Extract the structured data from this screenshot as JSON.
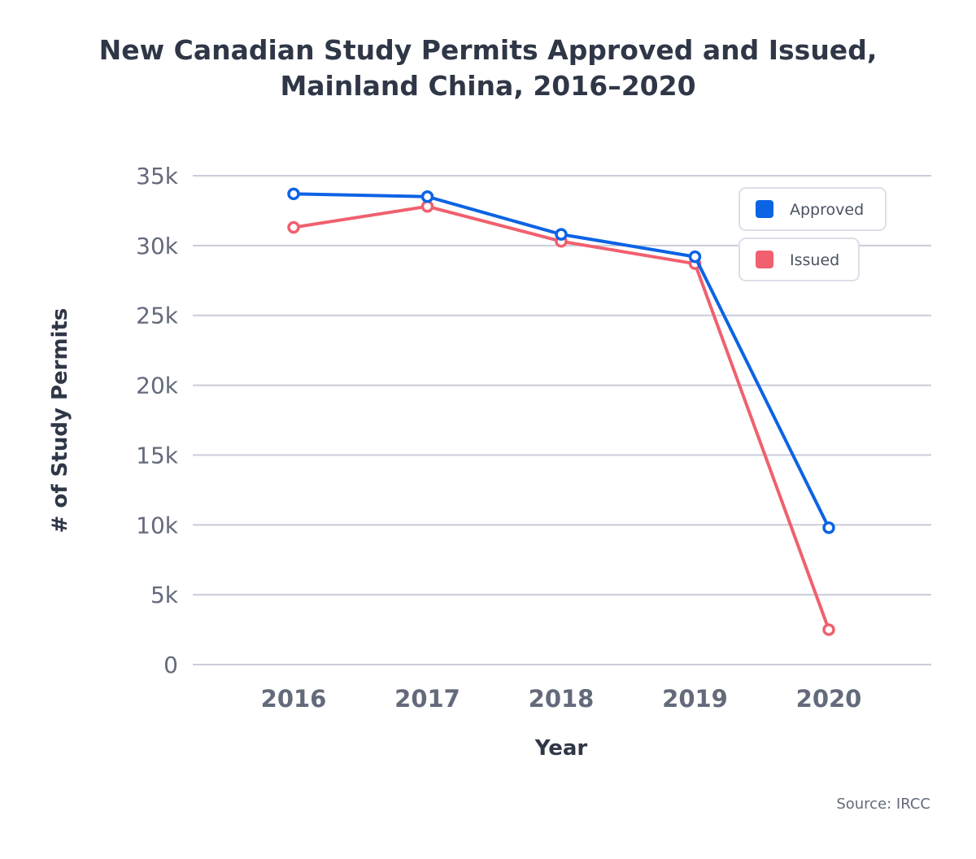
{
  "title_line1": "New Canadian Study Permits Approved and Issued,",
  "title_line2": "Mainland China, 2016–2020",
  "source": "Source: IRCC",
  "colors": {
    "approved": "#0c63e4",
    "issued": "#f0606f",
    "grid": "#c9ccd9",
    "tick_text": "#636a7a",
    "axis_title": "#2f3747"
  },
  "chart_data": {
    "type": "line",
    "xlabel": "Year",
    "ylabel": "# of Study Permits",
    "categories": [
      "2016",
      "2017",
      "2018",
      "2019",
      "2020"
    ],
    "ylim": [
      0,
      35000
    ],
    "yticks": [
      0,
      5000,
      10000,
      15000,
      20000,
      25000,
      30000,
      35000
    ],
    "ytick_labels": [
      "0",
      "5k",
      "10k",
      "15k",
      "20k",
      "25k",
      "30k",
      "35k"
    ],
    "grid": true,
    "legend_position": "top-right",
    "series": [
      {
        "name": "Approved",
        "values": [
          33700,
          33500,
          30800,
          29200,
          9800
        ]
      },
      {
        "name": "Issued",
        "values": [
          31300,
          32800,
          30300,
          28700,
          2500
        ]
      }
    ]
  }
}
